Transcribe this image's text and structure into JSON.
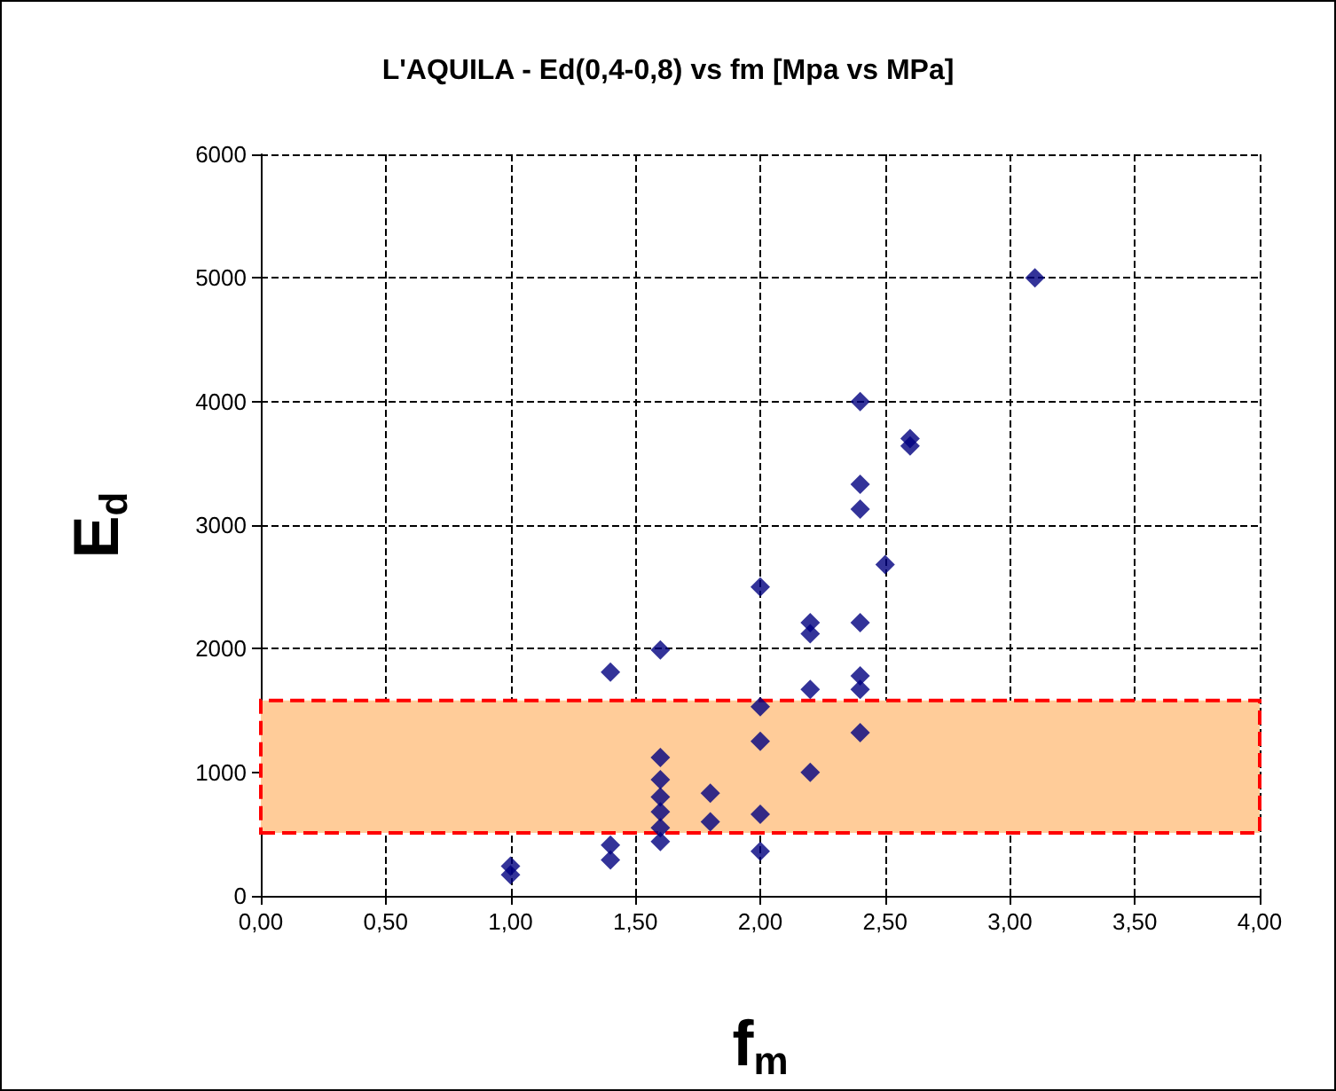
{
  "chart_data": {
    "type": "scatter",
    "title": "L'AQUILA - Ed(0,4-0,8) vs fm [Mpa vs MPa]",
    "xlabel": "f$_{m}$",
    "ylabel": "E$_{d}$",
    "x": [
      1.0,
      1.0,
      1.4,
      1.4,
      1.4,
      1.6,
      1.6,
      1.6,
      1.6,
      1.6,
      1.6,
      1.6,
      1.8,
      1.8,
      2.0,
      2.0,
      2.0,
      2.0,
      2.0,
      2.2,
      2.2,
      2.2,
      2.2,
      2.4,
      2.4,
      2.4,
      2.4,
      2.4,
      2.4,
      2.4,
      2.5,
      2.6,
      2.6,
      3.1
    ],
    "series": [
      {
        "color": "#000080",
        "values": [
          240,
          170,
          1810,
          410,
          290,
          1990,
          440,
          1120,
          940,
          800,
          680,
          550,
          830,
          600,
          2500,
          360,
          1530,
          1250,
          660,
          2210,
          2120,
          1670,
          1000,
          4000,
          3330,
          3130,
          2210,
          1780,
          1670,
          1320,
          2680,
          3700,
          3640,
          5000
        ]
      }
    ],
    "xlim": [
      0,
      4
    ],
    "xticks": [
      {
        "value": 0,
        "label": "0,00"
      },
      {
        "value": 0.5,
        "label": "0,50"
      },
      {
        "value": 1,
        "label": "1,00"
      },
      {
        "value": 1.5,
        "label": "1,50"
      },
      {
        "value": 2,
        "label": "2,00"
      },
      {
        "value": 2.5,
        "label": "2,50"
      },
      {
        "value": 3,
        "label": "3,00"
      },
      {
        "value": 3.5,
        "label": "3,50"
      },
      {
        "value": 4,
        "label": "4,00"
      }
    ],
    "ylim": [
      0,
      6000
    ],
    "yticks": [
      0,
      1000,
      2000,
      3000,
      4000,
      5000,
      6000
    ],
    "bands": [
      {
        "axis": "y",
        "from": 510,
        "to": 1580,
        "color": "#ffcc99"
      }
    ],
    "grid": true,
    "marker": "diamond"
  }
}
